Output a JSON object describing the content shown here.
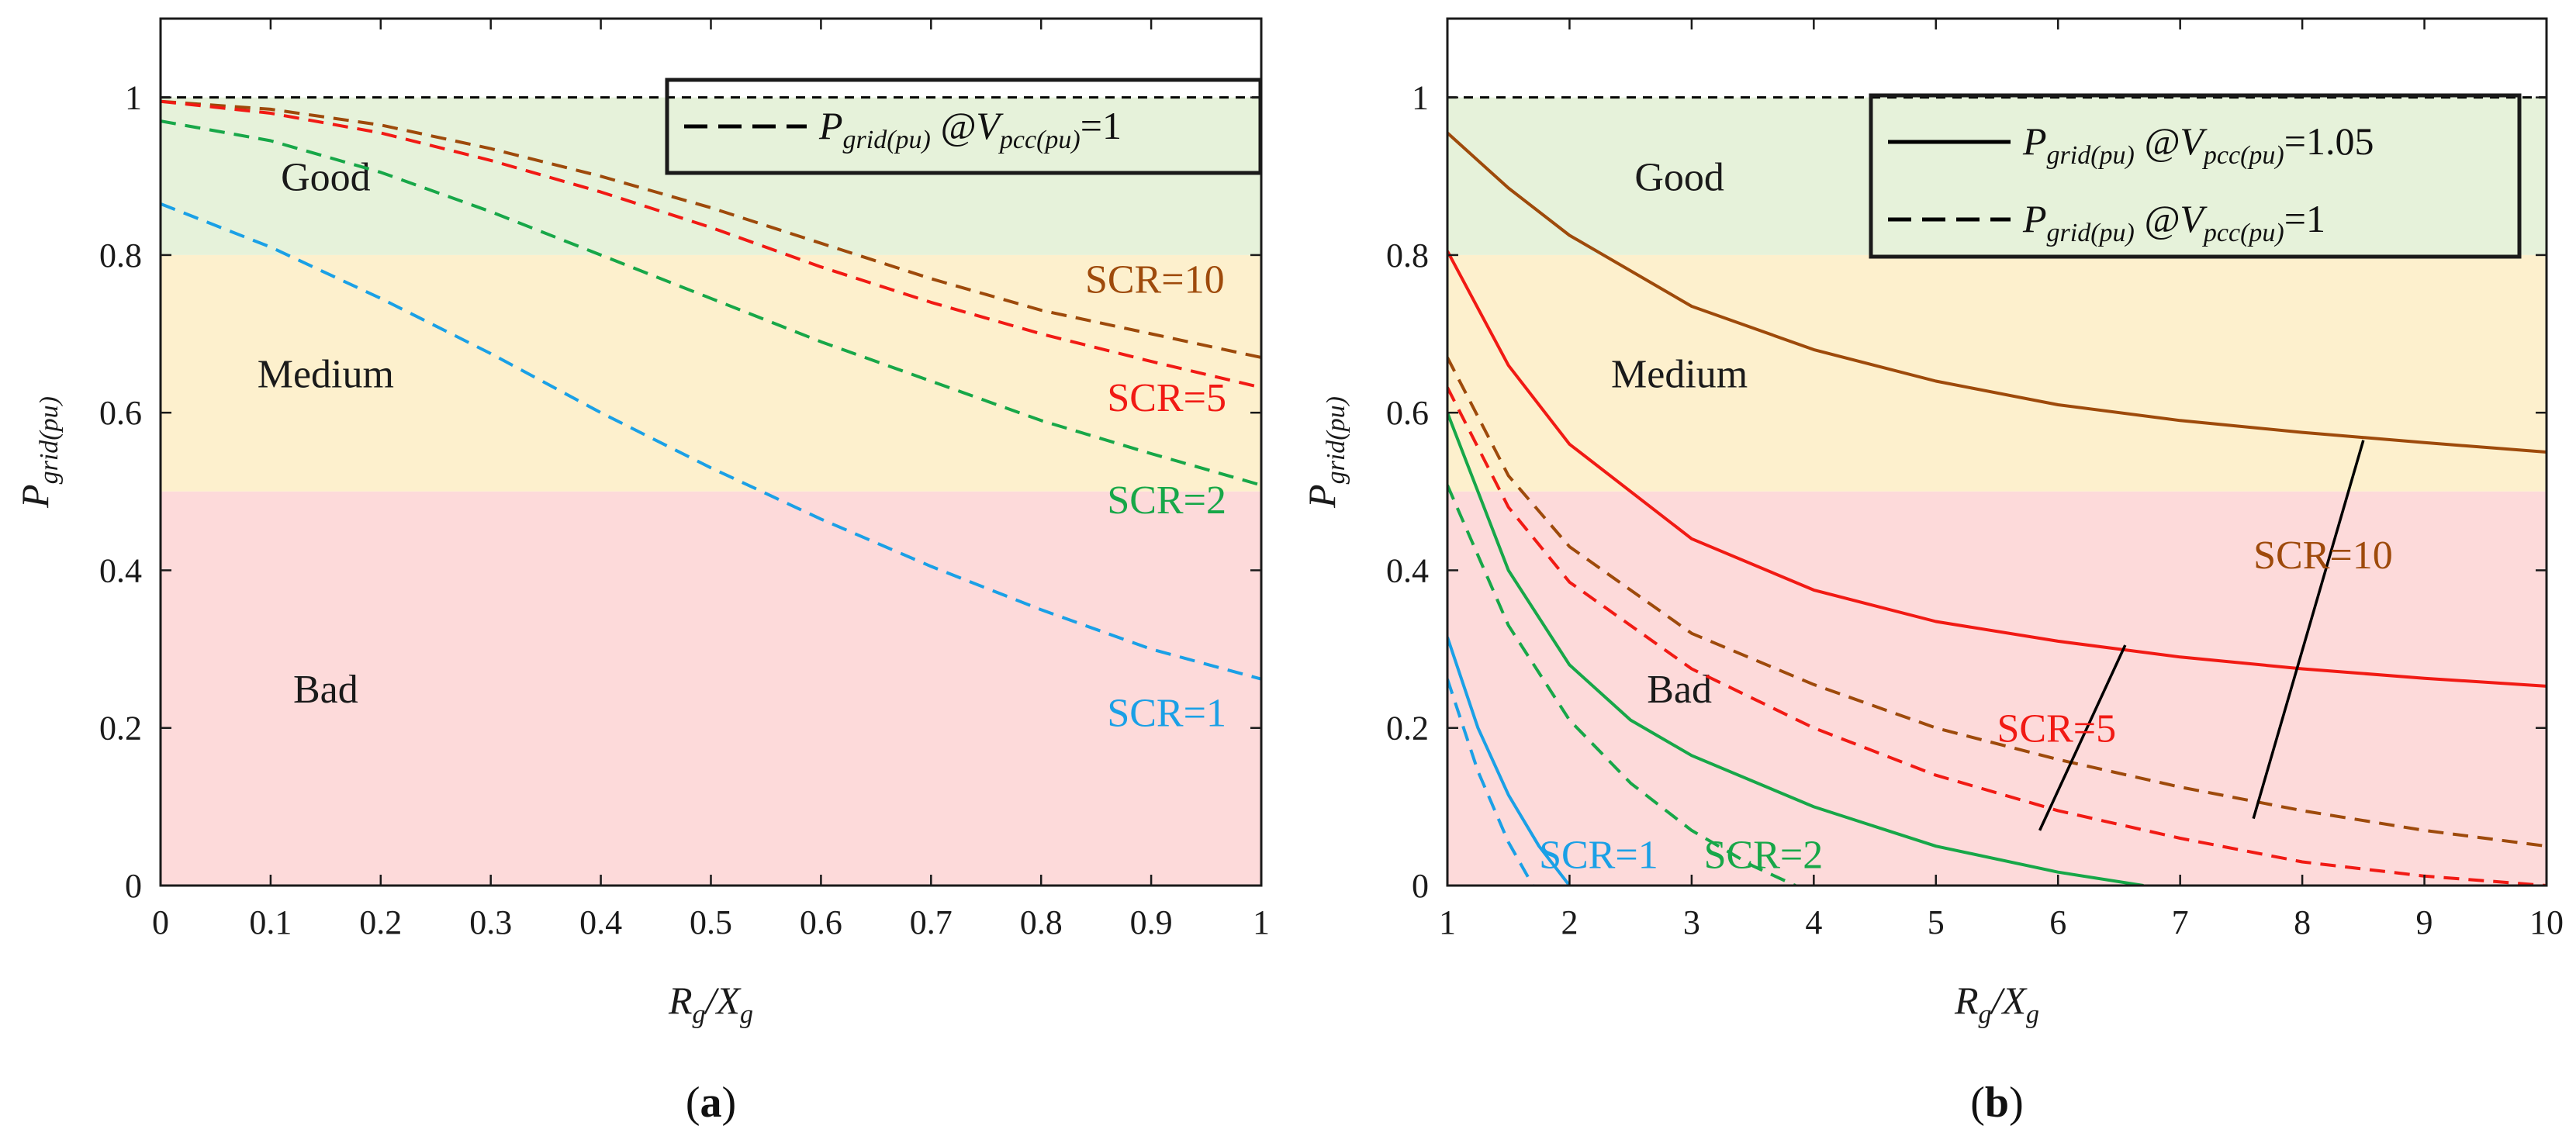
{
  "colors": {
    "good_zone": "#e6f2da",
    "medium_zone": "#fdf0cd",
    "bad_zone": "#fddada",
    "scr10": "#9e4a0b",
    "scr5": "#f11a14",
    "scr2": "#17a748",
    "scr1": "#1aa0e6",
    "reference_line": "#000000"
  },
  "chart_data": [
    {
      "type": "line",
      "panel_label": "(a)",
      "xlabel_main": "R",
      "xlabel_sub1": "g",
      "xlabel_mid": "/X",
      "xlabel_sub2": "g",
      "ylabel_main": "P",
      "ylabel_sub": "grid(pu)",
      "xlim": [
        0,
        1
      ],
      "ylim": [
        0,
        1.1
      ],
      "xticks": [
        "0",
        "0.1",
        "0.2",
        "0.3",
        "0.4",
        "0.5",
        "0.6",
        "0.7",
        "0.8",
        "0.9",
        "1"
      ],
      "yticks": [
        "0",
        "0.2",
        "0.4",
        "0.6",
        "0.8",
        "1"
      ],
      "zones": [
        {
          "name": "Good",
          "from": 0.8,
          "to": 1.0
        },
        {
          "name": "Medium",
          "from": 0.5,
          "to": 0.8
        },
        {
          "name": "Bad",
          "from": 0.0,
          "to": 0.5
        }
      ],
      "zone_label_x": 0.15,
      "legend": [
        {
          "style": "dashed",
          "text_main": "P",
          "text_sub": "grid(pu)",
          "text_mid": " @V",
          "text_sub2": "pcc(pu)",
          "text_end": "=1"
        }
      ],
      "reference_y": 1.0,
      "series": [
        {
          "name": "SCR=10",
          "style": "dashed",
          "color_key": "scr10",
          "x": [
            0,
            0.1,
            0.2,
            0.3,
            0.4,
            0.5,
            0.6,
            0.7,
            0.8,
            0.9,
            1.0
          ],
          "y": [
            0.995,
            0.985,
            0.965,
            0.935,
            0.9,
            0.86,
            0.815,
            0.77,
            0.73,
            0.7,
            0.67
          ],
          "label": "SCR=10",
          "label_pos": [
            0.84,
            0.77
          ]
        },
        {
          "name": "SCR=5",
          "style": "dashed",
          "color_key": "scr5",
          "x": [
            0,
            0.1,
            0.2,
            0.3,
            0.4,
            0.5,
            0.6,
            0.7,
            0.8,
            0.9,
            1.0
          ],
          "y": [
            0.995,
            0.98,
            0.955,
            0.92,
            0.88,
            0.835,
            0.785,
            0.74,
            0.7,
            0.665,
            0.632
          ],
          "label": "SCR=5",
          "label_pos": [
            0.86,
            0.62
          ]
        },
        {
          "name": "SCR=2",
          "style": "dashed",
          "color_key": "scr2",
          "x": [
            0,
            0.1,
            0.2,
            0.3,
            0.4,
            0.5,
            0.6,
            0.7,
            0.8,
            0.9,
            1.0
          ],
          "y": [
            0.97,
            0.945,
            0.905,
            0.855,
            0.8,
            0.745,
            0.69,
            0.64,
            0.59,
            0.548,
            0.508
          ],
          "label": "SCR=2",
          "label_pos": [
            0.86,
            0.49
          ]
        },
        {
          "name": "SCR=1",
          "style": "dashed",
          "color_key": "scr1",
          "x": [
            0,
            0.1,
            0.2,
            0.3,
            0.4,
            0.5,
            0.6,
            0.7,
            0.8,
            0.9,
            1.0
          ],
          "y": [
            0.865,
            0.81,
            0.745,
            0.675,
            0.6,
            0.53,
            0.465,
            0.405,
            0.35,
            0.3,
            0.262
          ],
          "label": "SCR=1",
          "label_pos": [
            0.86,
            0.22
          ]
        }
      ]
    },
    {
      "type": "line",
      "panel_label": "(b)",
      "xlabel_main": "R",
      "xlabel_sub1": "g",
      "xlabel_mid": "/X",
      "xlabel_sub2": "g",
      "ylabel_main": "P",
      "ylabel_sub": "grid(pu)",
      "xlim": [
        1,
        10
      ],
      "ylim": [
        0,
        1.1
      ],
      "xticks": [
        "1",
        "2",
        "3",
        "4",
        "5",
        "6",
        "7",
        "8",
        "9",
        "10"
      ],
      "yticks": [
        "0",
        "0.2",
        "0.4",
        "0.6",
        "0.8",
        "1"
      ],
      "zones": [
        {
          "name": "Good",
          "from": 0.8,
          "to": 1.0
        },
        {
          "name": "Medium",
          "from": 0.5,
          "to": 0.8
        },
        {
          "name": "Bad",
          "from": 0.0,
          "to": 0.5
        }
      ],
      "zone_label_x": 2.9,
      "legend": [
        {
          "style": "solid",
          "text_main": "P",
          "text_sub": "grid(pu)",
          "text_mid": " @V",
          "text_sub2": "pcc(pu)",
          "text_end": "=1.05"
        },
        {
          "style": "dashed",
          "text_main": "P",
          "text_sub": "grid(pu)",
          "text_mid": " @V",
          "text_sub2": "pcc(pu)",
          "text_end": "=1"
        }
      ],
      "reference_y": 1.0,
      "series": [
        {
          "name": "SCR=10 @1.05",
          "style": "solid",
          "color_key": "scr10",
          "x": [
            1,
            1.5,
            2,
            3,
            4,
            5,
            6,
            7,
            8,
            9,
            10
          ],
          "y": [
            0.955,
            0.885,
            0.825,
            0.735,
            0.68,
            0.64,
            0.61,
            0.59,
            0.575,
            0.562,
            0.55
          ]
        },
        {
          "name": "SCR=5 @1.05",
          "style": "solid",
          "color_key": "scr5",
          "x": [
            1,
            1.5,
            2,
            3,
            4,
            5,
            6,
            7,
            8,
            9,
            10
          ],
          "y": [
            0.805,
            0.66,
            0.56,
            0.44,
            0.375,
            0.335,
            0.31,
            0.29,
            0.275,
            0.263,
            0.253
          ]
        },
        {
          "name": "SCR=2 @1.05",
          "style": "solid",
          "color_key": "scr2",
          "x": [
            1,
            1.5,
            2,
            2.5,
            3,
            4,
            5,
            6,
            6.7
          ],
          "y": [
            0.6,
            0.4,
            0.28,
            0.21,
            0.165,
            0.1,
            0.05,
            0.017,
            0.0
          ]
        },
        {
          "name": "SCR=1 @1.05",
          "style": "solid",
          "color_key": "scr1",
          "x": [
            1,
            1.25,
            1.5,
            1.75,
            2.0
          ],
          "y": [
            0.315,
            0.2,
            0.115,
            0.05,
            0.0
          ]
        },
        {
          "name": "SCR=10 @1",
          "style": "dashed",
          "color_key": "scr10",
          "x": [
            1,
            1.5,
            2,
            3,
            4,
            5,
            6,
            7,
            8,
            9,
            10
          ],
          "y": [
            0.67,
            0.52,
            0.43,
            0.32,
            0.255,
            0.2,
            0.16,
            0.125,
            0.095,
            0.07,
            0.05
          ]
        },
        {
          "name": "SCR=5 @1",
          "style": "dashed",
          "color_key": "scr5",
          "x": [
            1,
            1.5,
            2,
            3,
            4,
            5,
            6,
            7,
            8,
            9,
            10
          ],
          "y": [
            0.632,
            0.48,
            0.385,
            0.275,
            0.2,
            0.14,
            0.095,
            0.06,
            0.03,
            0.012,
            0.0
          ]
        },
        {
          "name": "SCR=2 @1",
          "style": "dashed",
          "color_key": "scr2",
          "x": [
            1,
            1.5,
            2,
            2.5,
            3,
            3.5,
            3.85
          ],
          "y": [
            0.508,
            0.33,
            0.21,
            0.13,
            0.07,
            0.025,
            0.0
          ]
        },
        {
          "name": "SCR=1 @1",
          "style": "dashed",
          "color_key": "scr1",
          "x": [
            1,
            1.25,
            1.5,
            1.7
          ],
          "y": [
            0.262,
            0.145,
            0.055,
            0.0
          ]
        }
      ],
      "annotations": [
        {
          "text": "SCR=10",
          "color_key": "scr10",
          "label_pos": [
            7.6,
            0.42
          ],
          "leaders": [
            [
              7.6,
              0.085,
              8.5,
              0.565
            ]
          ]
        },
        {
          "text": "SCR=5",
          "color_key": "scr5",
          "label_pos": [
            5.5,
            0.2
          ],
          "leaders": [
            [
              5.85,
              0.07,
              6.55,
              0.305
            ]
          ]
        },
        {
          "text": "SCR=2",
          "color_key": "scr2",
          "label_pos": [
            3.1,
            0.04
          ],
          "leaders": []
        },
        {
          "text": "SCR=1",
          "color_key": "scr1",
          "label_pos": [
            1.75,
            0.04
          ],
          "leaders": []
        }
      ]
    }
  ]
}
